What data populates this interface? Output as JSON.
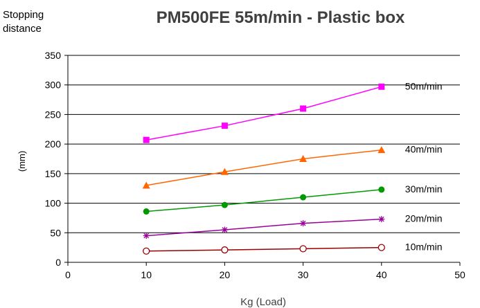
{
  "chart_data": {
    "type": "line",
    "title": "PM500FE 55m/min - Plastic box",
    "ylabel_lines": [
      "Stopping",
      "distance"
    ],
    "ylabel_unit": "(mm)",
    "xlabel": "Kg (Load)",
    "xlim": [
      0,
      50
    ],
    "ylim": [
      0,
      350
    ],
    "xticks": [
      "0",
      "10",
      "20",
      "30",
      "40",
      "50"
    ],
    "yticks": [
      "0",
      "50",
      "100",
      "150",
      "200",
      "250",
      "300",
      "350"
    ],
    "grid": "horizontal",
    "legend": "inline-right",
    "x": [
      10,
      20,
      30,
      40
    ],
    "series": [
      {
        "name": "50m/min",
        "values": [
          207,
          231,
          260,
          297
        ],
        "color": "#ff00ff",
        "marker": "square"
      },
      {
        "name": "40m/min",
        "values": [
          130,
          153,
          175,
          190
        ],
        "color": "#ff6600",
        "marker": "triangle"
      },
      {
        "name": "30m/min",
        "values": [
          86,
          97,
          110,
          123
        ],
        "color": "#009900",
        "marker": "circle"
      },
      {
        "name": "20m/min",
        "values": [
          45,
          55,
          66,
          73
        ],
        "color": "#990099",
        "marker": "star"
      },
      {
        "name": "10m/min",
        "values": [
          19,
          21,
          23,
          25
        ],
        "color": "#990000",
        "marker": "open-circle"
      }
    ]
  }
}
